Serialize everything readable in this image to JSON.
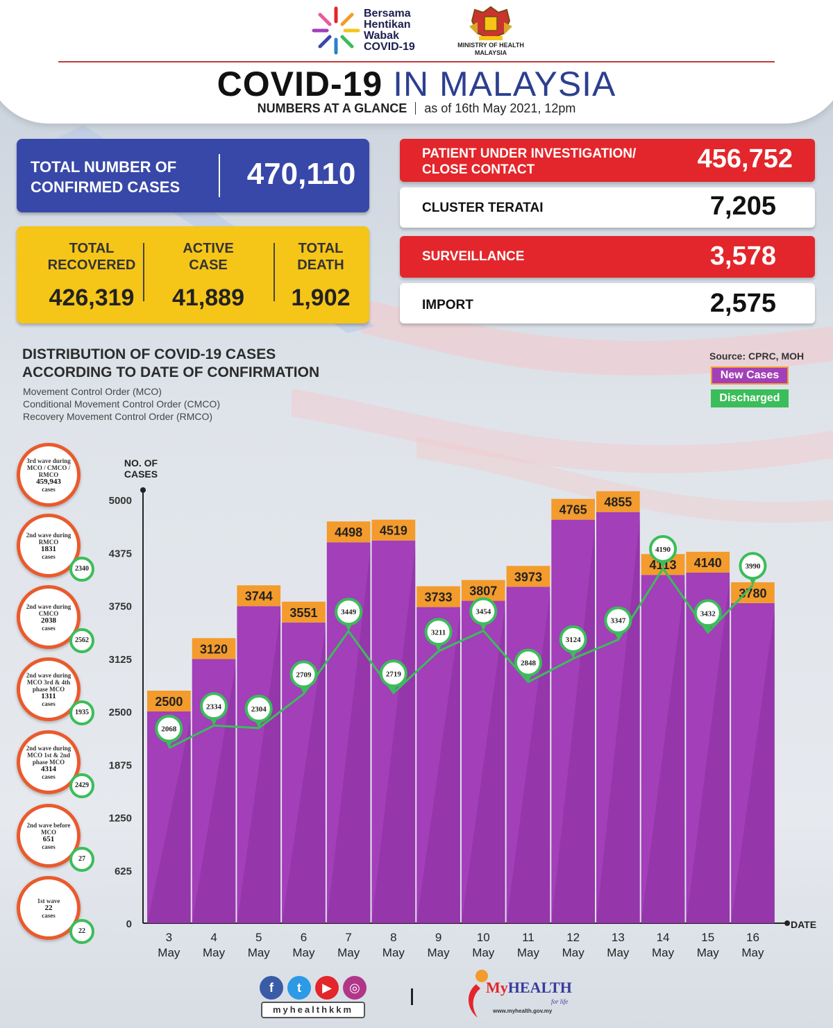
{
  "header": {
    "logo_lines": [
      "Bersama",
      "Hentikan",
      "Wabak",
      "COVID-19"
    ],
    "ministry_lines": [
      "MINISTRY OF HEALTH",
      "MALAYSIA"
    ],
    "title_bold": "COVID-19",
    "title_light": "IN MALAYSIA",
    "subtitle_bold": "NUMBERS AT A GLANCE",
    "subtitle_date": "as of 16th May 2021, 12pm"
  },
  "stats": {
    "confirmed_label_1": "TOTAL NUMBER OF",
    "confirmed_label_2": "CONFIRMED CASES",
    "confirmed_value": "470,110",
    "recovered_label_1": "TOTAL",
    "recovered_label_2": "RECOVERED",
    "recovered_value": "426,319",
    "active_label_1": "ACTIVE",
    "active_label_2": "CASE",
    "active_value": "41,889",
    "death_label_1": "TOTAL",
    "death_label_2": "DEATH",
    "death_value": "1,902",
    "pui_label_1": "PATIENT UNDER INVESTIGATION/",
    "pui_label_2": "CLOSE CONTACT",
    "pui_value": "456,752",
    "cluster_label": "CLUSTER TERATAI",
    "cluster_value": "7,205",
    "surveillance_label": "SURVEILLANCE",
    "surveillance_value": "3,578",
    "import_label": "IMPORT",
    "import_value": "2,575"
  },
  "chart_section": {
    "heading_1": "DISTRIBUTION OF COVID-19 CASES",
    "heading_2": "ACCORDING TO DATE OF CONFIRMATION",
    "notes": [
      "Movement Control Order (MCO)",
      "Conditional Movement Control Order (CMCO)",
      "Recovery Movement Control Order (RMCO)"
    ],
    "source": "Source: CPRC, MOH"
  },
  "waves": [
    {
      "label": "3rd wave during MCO / CMCO / RMCO",
      "cases": "459,943",
      "cases_suffix": "cases",
      "badge": ""
    },
    {
      "label": "2nd wave during RMCO",
      "cases": "1831",
      "cases_suffix": "cases",
      "badge": "2340"
    },
    {
      "label": "2nd wave during CMCO",
      "cases": "2038",
      "cases_suffix": "cases",
      "badge": "2562"
    },
    {
      "label": "2nd wave during MCO 3rd & 4th phase MCO",
      "cases": "1311",
      "cases_suffix": "cases",
      "badge": "1935"
    },
    {
      "label": "2nd wave during MCO 1st & 2nd phase MCO",
      "cases": "4314",
      "cases_suffix": "cases",
      "badge": "2429"
    },
    {
      "label": "2nd wave before MCO",
      "cases": "651",
      "cases_suffix": "cases",
      "badge": "27"
    },
    {
      "label": "1st wave",
      "cases": "22",
      "cases_suffix": "cases",
      "badge": "22"
    }
  ],
  "chart_data": {
    "type": "bar",
    "ylabel": "NO. OF CASES",
    "xlabel": "DATE",
    "ylim": [
      0,
      5000
    ],
    "yticks": [
      0,
      625,
      1250,
      1875,
      2500,
      3125,
      3750,
      4375,
      5000
    ],
    "categories": [
      "3 May",
      "4 May",
      "5 May",
      "6 May",
      "7 May",
      "8 May",
      "9 May",
      "10 May",
      "11 May",
      "12 May",
      "13 May",
      "14 May",
      "15 May",
      "16 May"
    ],
    "series": [
      {
        "name": "New Cases",
        "type": "bar",
        "color": "#a23fb9",
        "values": [
          2500,
          3120,
          3744,
          3551,
          4498,
          4519,
          3733,
          3807,
          3973,
          4765,
          4855,
          4113,
          4140,
          3780
        ]
      },
      {
        "name": "Discharged",
        "type": "line",
        "color": "#3bbd5a",
        "values": [
          2068,
          2334,
          2304,
          2709,
          3449,
          2719,
          3211,
          3454,
          2848,
          3124,
          3347,
          4190,
          3432,
          3990
        ]
      }
    ],
    "legend": "top-right"
  },
  "footer": {
    "handle": "myhealthkkm",
    "brand_my": "My",
    "brand_health": "HEALTH",
    "brand_sub": "for life",
    "brand_url": "www.myhealth.gov.my"
  }
}
